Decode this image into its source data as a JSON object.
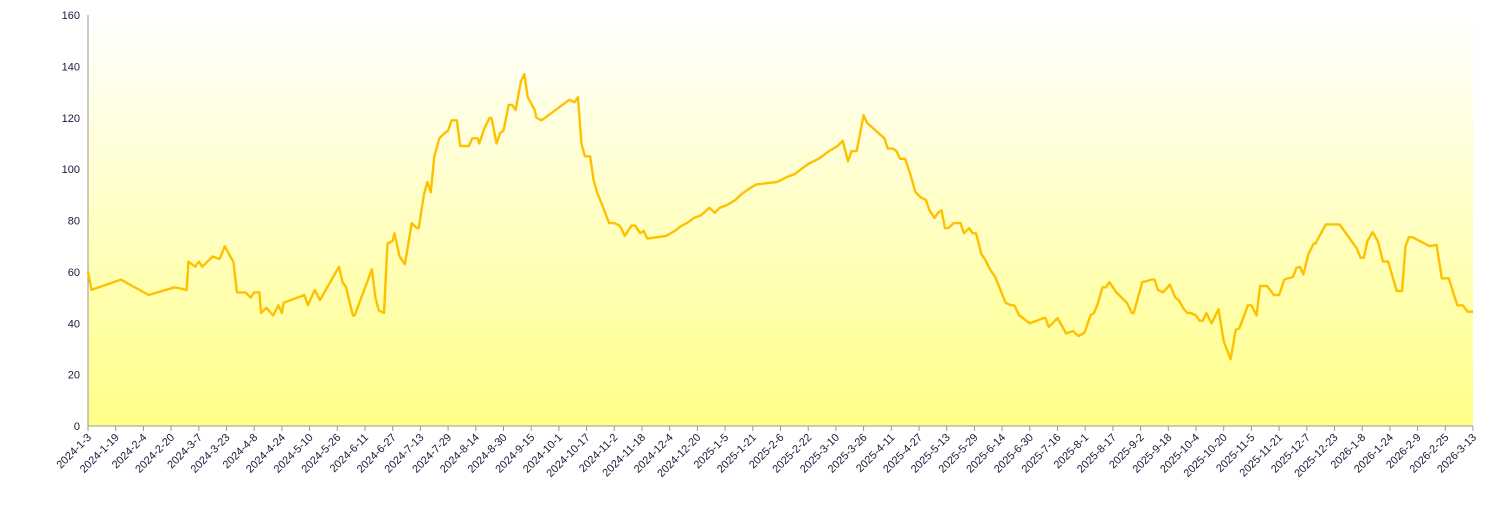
{
  "chart_data": {
    "type": "line",
    "title": "",
    "xlabel": "",
    "ylabel": "",
    "ylim": [
      0,
      160
    ],
    "xlim": [
      "2024-1-3",
      "2026-3-13"
    ],
    "y_ticks": [
      0,
      20,
      40,
      60,
      80,
      100,
      120,
      140,
      160
    ],
    "x_tick_labels": [
      "2024-1-3",
      "2024-1-19",
      "2024-2-4",
      "2024-2-20",
      "2024-3-7",
      "2024-3-23",
      "2024-4-8",
      "2024-4-24",
      "2024-5-10",
      "2024-5-26",
      "2024-6-11",
      "2024-6-27",
      "2024-7-13",
      "2024-7-29",
      "2024-8-14",
      "2024-8-30",
      "2024-9-15",
      "2024-10-1",
      "2024-10-17",
      "2024-11-2",
      "2024-11-18",
      "2024-12-4",
      "2024-12-20",
      "2025-1-5",
      "2025-1-21",
      "2025-2-6",
      "2025-2-22",
      "2025-3-10",
      "2025-3-26",
      "2025-4-11",
      "2025-4-27",
      "2025-5-13",
      "2025-5-29",
      "2025-6-14",
      "2025-6-30",
      "2025-7-16",
      "2025-8-1",
      "2025-8-17",
      "2025-9-2",
      "2025-9-18",
      "2025-10-4",
      "2025-10-20",
      "2025-11-5",
      "2025-11-21",
      "2025-12-7",
      "2025-12-23",
      "2026-1-8",
      "2026-1-24",
      "2026-2-9",
      "2026-2-25",
      "2026-3-13"
    ],
    "grid": false,
    "legend": "none",
    "colors": {
      "line": "#FFC000",
      "background_top": "#FFFFFF",
      "background_bottom": "#FFFF88",
      "axis": "#999999"
    },
    "series": [
      {
        "points": [
          [
            "2024-1-3",
            60
          ],
          [
            "2024-1-5",
            53
          ],
          [
            "2024-1-22",
            57
          ],
          [
            "2024-2-7",
            51
          ],
          [
            "2024-2-22",
            54
          ],
          [
            "2024-2-29",
            53
          ],
          [
            "2024-3-1",
            64
          ],
          [
            "2024-3-5",
            62
          ],
          [
            "2024-3-7",
            64
          ],
          [
            "2024-3-9",
            62
          ],
          [
            "2024-3-12",
            64
          ],
          [
            "2024-3-15",
            66
          ],
          [
            "2024-3-19",
            65
          ],
          [
            "2024-3-22",
            70
          ],
          [
            "2024-3-26",
            65
          ],
          [
            "2024-3-27",
            64
          ],
          [
            "2024-3-29",
            52
          ],
          [
            "2024-4-3",
            52
          ],
          [
            "2024-4-6",
            50
          ],
          [
            "2024-4-8",
            52
          ],
          [
            "2024-4-11",
            52
          ],
          [
            "2024-4-12",
            44
          ],
          [
            "2024-4-15",
            46
          ],
          [
            "2024-4-19",
            43
          ],
          [
            "2024-4-22",
            47
          ],
          [
            "2024-4-24",
            44
          ],
          [
            "2024-4-25",
            48
          ],
          [
            "2024-5-7",
            51
          ],
          [
            "2024-5-9",
            47
          ],
          [
            "2024-5-13",
            53
          ],
          [
            "2024-5-16",
            49
          ],
          [
            "2024-5-27",
            62
          ],
          [
            "2024-5-29",
            56
          ],
          [
            "2024-5-31",
            54
          ],
          [
            "2024-6-4",
            43
          ],
          [
            "2024-6-5",
            43
          ],
          [
            "2024-6-15",
            61
          ],
          [
            "2024-6-17",
            50
          ],
          [
            "2024-6-19",
            45
          ],
          [
            "2024-6-22",
            44
          ],
          [
            "2024-6-24",
            71
          ],
          [
            "2024-6-27",
            72
          ],
          [
            "2024-6-28",
            75
          ],
          [
            "2024-7-1",
            66
          ],
          [
            "2024-7-4",
            63
          ],
          [
            "2024-7-5",
            67
          ],
          [
            "2024-7-8",
            79
          ],
          [
            "2024-7-11",
            77
          ],
          [
            "2024-7-12",
            77
          ],
          [
            "2024-7-15",
            90
          ],
          [
            "2024-7-17",
            95
          ],
          [
            "2024-7-19",
            91
          ],
          [
            "2024-7-21",
            105
          ],
          [
            "2024-7-24",
            112
          ],
          [
            "2024-7-27",
            114
          ],
          [
            "2024-7-29",
            115
          ],
          [
            "2024-7-31",
            119
          ],
          [
            "2024-8-3",
            119
          ],
          [
            "2024-8-5",
            109
          ],
          [
            "2024-8-8",
            109
          ],
          [
            "2024-8-10",
            109
          ],
          [
            "2024-8-12",
            112
          ],
          [
            "2024-8-15",
            112
          ],
          [
            "2024-8-16",
            110
          ],
          [
            "2024-8-19",
            116
          ],
          [
            "2024-8-22",
            120
          ],
          [
            "2024-8-23",
            120
          ],
          [
            "2024-8-26",
            110
          ],
          [
            "2024-8-28",
            114
          ],
          [
            "2024-8-30",
            115
          ],
          [
            "2024-9-2",
            125
          ],
          [
            "2024-9-4",
            125
          ],
          [
            "2024-9-6",
            123
          ],
          [
            "2024-9-9",
            134
          ],
          [
            "2024-9-11",
            137
          ],
          [
            "2024-9-13",
            128
          ],
          [
            "2024-9-17",
            123
          ],
          [
            "2024-9-18",
            120
          ],
          [
            "2024-9-21",
            119
          ],
          [
            "2024-10-7",
            127
          ],
          [
            "2024-10-10",
            126
          ],
          [
            "2024-10-12",
            128
          ],
          [
            "2024-10-14",
            110
          ],
          [
            "2024-10-16",
            105
          ],
          [
            "2024-10-19",
            105
          ],
          [
            "2024-10-21",
            96
          ],
          [
            "2024-10-23",
            91
          ],
          [
            "2024-10-26",
            86
          ],
          [
            "2024-10-30",
            79
          ],
          [
            "2024-11-2",
            79
          ],
          [
            "2024-11-5",
            78
          ],
          [
            "2024-11-6",
            77
          ],
          [
            "2024-11-8",
            74
          ],
          [
            "2024-11-12",
            78
          ],
          [
            "2024-11-14",
            78
          ],
          [
            "2024-11-17",
            75
          ],
          [
            "2024-11-19",
            76
          ],
          [
            "2024-11-21",
            73
          ],
          [
            "2024-12-2",
            74
          ],
          [
            "2024-12-7",
            76
          ],
          [
            "2024-12-11",
            78
          ],
          [
            "2024-12-14",
            79
          ],
          [
            "2024-12-18",
            81
          ],
          [
            "2024-12-22",
            82
          ],
          [
            "2024-12-27",
            85
          ],
          [
            "2024-12-30",
            83
          ],
          [
            "2025-1-2",
            85
          ],
          [
            "2025-1-6",
            86
          ],
          [
            "2025-1-11",
            88
          ],
          [
            "2025-1-14",
            90
          ],
          [
            "2025-1-18",
            92
          ],
          [
            "2025-1-23",
            94
          ],
          [
            "2025-2-4",
            95
          ],
          [
            "2025-2-10",
            97
          ],
          [
            "2025-2-14",
            98
          ],
          [
            "2025-2-18",
            100
          ],
          [
            "2025-2-22",
            102
          ],
          [
            "2025-2-28",
            104
          ],
          [
            "2025-3-6",
            107
          ],
          [
            "2025-3-11",
            109
          ],
          [
            "2025-3-14",
            111
          ],
          [
            "2025-3-17",
            103
          ],
          [
            "2025-3-19",
            107
          ],
          [
            "2025-3-22",
            107
          ],
          [
            "2025-3-26",
            121
          ],
          [
            "2025-3-28",
            118
          ],
          [
            "2025-4-7",
            112
          ],
          [
            "2025-4-9",
            108
          ],
          [
            "2025-4-12",
            108
          ],
          [
            "2025-4-14",
            107
          ],
          [
            "2025-4-16",
            104
          ],
          [
            "2025-4-19",
            104
          ],
          [
            "2025-4-22",
            98
          ],
          [
            "2025-4-25",
            91
          ],
          [
            "2025-4-28",
            89
          ],
          [
            "2025-5-1",
            88
          ],
          [
            "2025-5-3",
            84
          ],
          [
            "2025-5-6",
            81
          ],
          [
            "2025-5-8",
            83
          ],
          [
            "2025-5-10",
            84
          ],
          [
            "2025-5-12",
            77
          ],
          [
            "2025-5-14",
            77
          ],
          [
            "2025-5-17",
            79
          ],
          [
            "2025-5-21",
            79
          ],
          [
            "2025-5-23",
            75
          ],
          [
            "2025-5-26",
            77
          ],
          [
            "2025-5-28",
            75
          ],
          [
            "2025-5-30",
            75
          ],
          [
            "2025-6-2",
            67
          ],
          [
            "2025-6-4",
            65
          ],
          [
            "2025-6-7",
            61
          ],
          [
            "2025-6-10",
            58
          ],
          [
            "2025-6-13",
            53
          ],
          [
            "2025-6-16",
            48
          ],
          [
            "2025-6-19",
            47
          ],
          [
            "2025-6-21",
            47
          ],
          [
            "2025-6-24",
            43
          ],
          [
            "2025-6-26",
            42
          ],
          [
            "2025-6-30",
            40
          ],
          [
            "2025-7-8",
            42
          ],
          [
            "2025-7-9",
            42
          ],
          [
            "2025-7-11",
            38.5
          ],
          [
            "2025-7-16",
            42
          ],
          [
            "2025-7-21",
            36
          ],
          [
            "2025-7-25",
            37
          ],
          [
            "2025-7-28",
            35
          ],
          [
            "2025-7-31",
            36
          ],
          [
            "2025-8-1",
            37
          ],
          [
            "2025-8-4",
            43
          ],
          [
            "2025-8-6",
            44
          ],
          [
            "2025-8-8",
            47
          ],
          [
            "2025-8-11",
            54
          ],
          [
            "2025-8-13",
            54
          ],
          [
            "2025-8-15",
            56
          ],
          [
            "2025-8-19",
            52
          ],
          [
            "2025-8-25",
            48
          ],
          [
            "2025-8-28",
            44
          ],
          [
            "2025-8-29",
            44
          ],
          [
            "2025-9-3",
            56
          ],
          [
            "2025-9-6",
            56.5
          ],
          [
            "2025-9-8",
            57
          ],
          [
            "2025-9-10",
            57
          ],
          [
            "2025-9-12",
            53
          ],
          [
            "2025-9-15",
            52
          ],
          [
            "2025-9-19",
            55
          ],
          [
            "2025-9-22",
            50
          ],
          [
            "2025-9-24",
            49
          ],
          [
            "2025-9-27",
            45.5
          ],
          [
            "2025-9-29",
            44
          ],
          [
            "2025-10-1",
            44
          ],
          [
            "2025-10-4",
            43
          ],
          [
            "2025-10-6",
            41
          ],
          [
            "2025-10-8",
            41
          ],
          [
            "2025-10-10",
            44
          ],
          [
            "2025-10-13",
            40
          ],
          [
            "2025-10-17",
            45.5
          ],
          [
            "2025-10-20",
            33
          ],
          [
            "2025-10-24",
            26
          ],
          [
            "2025-10-27",
            37.5
          ],
          [
            "2025-10-29",
            38
          ],
          [
            "2025-11-3",
            47
          ],
          [
            "2025-11-5",
            47
          ],
          [
            "2025-11-8",
            43
          ],
          [
            "2025-11-10",
            54.5
          ],
          [
            "2025-11-14",
            54.5
          ],
          [
            "2025-11-18",
            51
          ],
          [
            "2025-11-21",
            51
          ],
          [
            "2025-11-24",
            57
          ],
          [
            "2025-11-26",
            57.5
          ],
          [
            "2025-11-29",
            58
          ],
          [
            "2025-12-1",
            61.5
          ],
          [
            "2025-12-3",
            62
          ],
          [
            "2025-12-5",
            59
          ],
          [
            "2025-12-8",
            67
          ],
          [
            "2025-12-11",
            71
          ],
          [
            "2025-12-12",
            71
          ],
          [
            "2025-12-14",
            73.5
          ],
          [
            "2025-12-18",
            78.5
          ],
          [
            "2025-12-22",
            78.5
          ],
          [
            "2025-12-26",
            78.5
          ],
          [
            "2026-1-5",
            69
          ],
          [
            "2026-1-7",
            65.5
          ],
          [
            "2026-1-9",
            65.5
          ],
          [
            "2026-1-11",
            72
          ],
          [
            "2026-1-14",
            75.5
          ],
          [
            "2026-1-17",
            72
          ],
          [
            "2026-1-20",
            64
          ],
          [
            "2026-1-23",
            64
          ],
          [
            "2026-1-26",
            57
          ],
          [
            "2026-1-28",
            52.5
          ],
          [
            "2026-1-31",
            52.5
          ],
          [
            "2026-2-2",
            70
          ],
          [
            "2026-2-4",
            73.5
          ],
          [
            "2026-2-6",
            73.5
          ],
          [
            "2026-2-16",
            70
          ],
          [
            "2026-2-20",
            70.5
          ],
          [
            "2026-2-23",
            57.5
          ],
          [
            "2026-2-27",
            57.5
          ],
          [
            "2026-3-2",
            51
          ],
          [
            "2026-3-4",
            47
          ],
          [
            "2026-3-7",
            47
          ],
          [
            "2026-3-10",
            44.5
          ],
          [
            "2026-3-13",
            44.5
          ]
        ]
      }
    ]
  }
}
